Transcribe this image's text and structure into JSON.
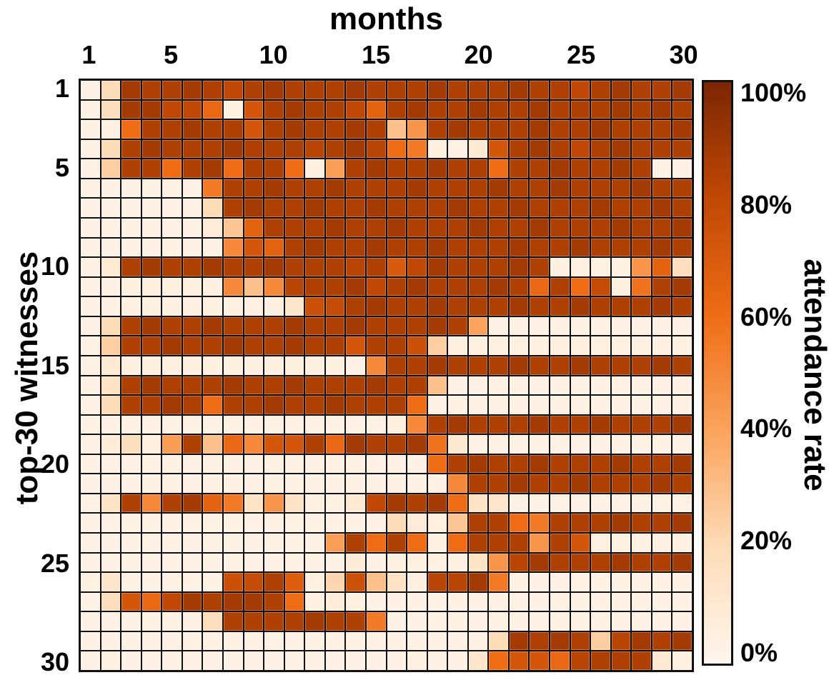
{
  "title": "months",
  "y_axis_title": "top-30 witnesses",
  "x_ticks": [
    {
      "label": "1",
      "col": 1
    },
    {
      "label": "5",
      "col": 5
    },
    {
      "label": "10",
      "col": 10
    },
    {
      "label": "15",
      "col": 15
    },
    {
      "label": "20",
      "col": 20
    },
    {
      "label": "25",
      "col": 25
    },
    {
      "label": "30",
      "col": 30
    }
  ],
  "y_ticks": [
    {
      "label": "1",
      "row": 1
    },
    {
      "label": "5",
      "row": 5
    },
    {
      "label": "10",
      "row": 10
    },
    {
      "label": "15",
      "row": 15
    },
    {
      "label": "20",
      "row": 20
    },
    {
      "label": "25",
      "row": 25
    },
    {
      "label": "30",
      "row": 30
    }
  ],
  "colorbar": {
    "title": "attendance rate",
    "tick_labels": [
      "100%",
      "80%",
      "60%",
      "40%",
      "20%",
      "0%"
    ],
    "tick_values": [
      1.0,
      0.8,
      0.6,
      0.4,
      0.2,
      0.0
    ]
  },
  "chart_data": {
    "type": "heatmap",
    "xlabel": "months",
    "ylabel": "top-30 witnesses",
    "x_range": [
      1,
      30
    ],
    "y_range": [
      1,
      30
    ],
    "value_label": "attendance rate",
    "value_range": [
      0,
      1
    ],
    "grid": "black cell borders",
    "legend_position": "right colorbar",
    "colormap_stops": [
      {
        "t": 0.0,
        "color": "#fff6ed"
      },
      {
        "t": 0.2,
        "color": "#fddcb8"
      },
      {
        "t": 0.4,
        "color": "#fba35c"
      },
      {
        "t": 0.6,
        "color": "#ef6c15"
      },
      {
        "t": 0.8,
        "color": "#c04804"
      },
      {
        "t": 1.0,
        "color": "#7a2603"
      }
    ],
    "matrix": [
      [
        0.03,
        0.2,
        0.88,
        0.85,
        0.85,
        0.88,
        0.85,
        0.8,
        0.85,
        0.88,
        0.85,
        0.85,
        0.85,
        0.88,
        0.85,
        0.85,
        0.85,
        0.88,
        0.85,
        0.85,
        0.85,
        0.88,
        0.85,
        0.85,
        0.8,
        0.85,
        0.88,
        0.85,
        0.85,
        0.88
      ],
      [
        0.03,
        0.18,
        0.88,
        0.88,
        0.8,
        0.8,
        0.62,
        0.04,
        0.72,
        0.85,
        0.88,
        0.85,
        0.85,
        0.8,
        0.65,
        0.85,
        0.88,
        0.85,
        0.85,
        0.88,
        0.85,
        0.85,
        0.88,
        0.85,
        0.85,
        0.85,
        0.88,
        0.85,
        0.88,
        0.85
      ],
      [
        0.03,
        0.04,
        0.6,
        0.85,
        0.85,
        0.88,
        0.85,
        0.85,
        0.72,
        0.85,
        0.88,
        0.85,
        0.85,
        0.88,
        0.85,
        0.3,
        0.45,
        0.85,
        0.88,
        0.85,
        0.85,
        0.85,
        0.88,
        0.85,
        0.85,
        0.88,
        0.85,
        0.85,
        0.85,
        0.88
      ],
      [
        0.03,
        0.2,
        0.85,
        0.88,
        0.85,
        0.85,
        0.85,
        0.88,
        0.85,
        0.85,
        0.85,
        0.82,
        0.85,
        0.88,
        0.82,
        0.6,
        0.55,
        0.05,
        0.03,
        0.1,
        0.72,
        0.85,
        0.88,
        0.85,
        0.8,
        0.85,
        0.88,
        0.85,
        0.85,
        0.85
      ],
      [
        0.03,
        0.25,
        0.85,
        0.85,
        0.6,
        0.85,
        0.88,
        0.6,
        0.85,
        0.85,
        0.6,
        0.04,
        0.42,
        0.85,
        0.88,
        0.85,
        0.85,
        0.88,
        0.85,
        0.85,
        0.6,
        0.85,
        0.85,
        0.88,
        0.85,
        0.85,
        0.88,
        0.85,
        0.03,
        0.03
      ],
      [
        0.03,
        0.03,
        0.03,
        0.03,
        0.03,
        0.03,
        0.55,
        0.85,
        0.85,
        0.88,
        0.85,
        0.85,
        0.88,
        0.85,
        0.85,
        0.85,
        0.88,
        0.85,
        0.85,
        0.85,
        0.88,
        0.85,
        0.85,
        0.88,
        0.85,
        0.85,
        0.85,
        0.88,
        0.85,
        0.85
      ],
      [
        0.03,
        0.03,
        0.03,
        0.03,
        0.03,
        0.03,
        0.2,
        0.85,
        0.88,
        0.85,
        0.85,
        0.88,
        0.85,
        0.85,
        0.88,
        0.85,
        0.85,
        0.85,
        0.88,
        0.85,
        0.85,
        0.88,
        0.85,
        0.85,
        0.85,
        0.88,
        0.85,
        0.85,
        0.88,
        0.85
      ],
      [
        0.03,
        0.03,
        0.03,
        0.03,
        0.03,
        0.03,
        0.08,
        0.28,
        0.65,
        0.85,
        0.85,
        0.85,
        0.88,
        0.85,
        0.85,
        0.88,
        0.85,
        0.85,
        0.85,
        0.88,
        0.85,
        0.85,
        0.88,
        0.85,
        0.85,
        0.85,
        0.88,
        0.85,
        0.85,
        0.88
      ],
      [
        0.03,
        0.03,
        0.03,
        0.03,
        0.03,
        0.03,
        0.03,
        0.5,
        0.72,
        0.65,
        0.85,
        0.88,
        0.85,
        0.85,
        0.88,
        0.85,
        0.85,
        0.88,
        0.85,
        0.85,
        0.85,
        0.88,
        0.85,
        0.85,
        0.88,
        0.85,
        0.85,
        0.85,
        0.88,
        0.85
      ],
      [
        0.03,
        0.1,
        0.85,
        0.88,
        0.85,
        0.85,
        0.88,
        0.85,
        0.85,
        0.88,
        0.85,
        0.85,
        0.85,
        0.82,
        0.85,
        0.7,
        0.8,
        0.88,
        0.85,
        0.85,
        0.85,
        0.88,
        0.85,
        0.04,
        0.04,
        0.04,
        0.04,
        0.45,
        0.65,
        0.18
      ],
      [
        0.03,
        0.03,
        0.05,
        0.05,
        0.05,
        0.05,
        0.04,
        0.5,
        0.3,
        0.5,
        0.82,
        0.85,
        0.85,
        0.88,
        0.8,
        0.85,
        0.88,
        0.85,
        0.85,
        0.85,
        0.88,
        0.85,
        0.62,
        0.85,
        0.6,
        0.78,
        0.05,
        0.58,
        0.85,
        0.88
      ],
      [
        0.03,
        0.03,
        0.04,
        0.04,
        0.04,
        0.04,
        0.04,
        0.04,
        0.04,
        0.04,
        0.12,
        0.75,
        0.78,
        0.85,
        0.88,
        0.85,
        0.85,
        0.88,
        0.85,
        0.85,
        0.85,
        0.88,
        0.85,
        0.85,
        0.88,
        0.85,
        0.85,
        0.85,
        0.88,
        0.85
      ],
      [
        0.03,
        0.2,
        0.85,
        0.88,
        0.85,
        0.85,
        0.88,
        0.85,
        0.85,
        0.85,
        0.88,
        0.85,
        0.85,
        0.88,
        0.85,
        0.85,
        0.85,
        0.88,
        0.85,
        0.4,
        0.03,
        0.03,
        0.03,
        0.03,
        0.03,
        0.03,
        0.03,
        0.03,
        0.03,
        0.03
      ],
      [
        0.03,
        0.25,
        0.85,
        0.85,
        0.88,
        0.85,
        0.85,
        0.88,
        0.85,
        0.85,
        0.88,
        0.85,
        0.85,
        0.72,
        0.85,
        0.85,
        0.75,
        0.25,
        0.04,
        0.04,
        0.04,
        0.04,
        0.04,
        0.04,
        0.04,
        0.04,
        0.04,
        0.04,
        0.04,
        0.04
      ],
      [
        0.03,
        0.1,
        0.04,
        0.04,
        0.04,
        0.04,
        0.04,
        0.04,
        0.04,
        0.04,
        0.04,
        0.04,
        0.04,
        0.03,
        0.5,
        0.85,
        0.85,
        0.88,
        0.85,
        0.85,
        0.85,
        0.88,
        0.85,
        0.85,
        0.88,
        0.85,
        0.85,
        0.85,
        0.88,
        0.85
      ],
      [
        0.03,
        0.15,
        0.85,
        0.88,
        0.85,
        0.85,
        0.85,
        0.88,
        0.85,
        0.85,
        0.88,
        0.85,
        0.85,
        0.85,
        0.88,
        0.85,
        0.85,
        0.3,
        0.03,
        0.03,
        0.03,
        0.03,
        0.03,
        0.03,
        0.03,
        0.03,
        0.03,
        0.03,
        0.03,
        0.03
      ],
      [
        0.03,
        0.2,
        0.85,
        0.85,
        0.88,
        0.85,
        0.6,
        0.85,
        0.85,
        0.88,
        0.85,
        0.85,
        0.88,
        0.85,
        0.85,
        0.85,
        0.6,
        0.03,
        0.03,
        0.03,
        0.03,
        0.03,
        0.03,
        0.03,
        0.03,
        0.03,
        0.03,
        0.03,
        0.03,
        0.03
      ],
      [
        0.03,
        0.03,
        0.03,
        0.03,
        0.03,
        0.03,
        0.03,
        0.03,
        0.03,
        0.03,
        0.03,
        0.03,
        0.03,
        0.03,
        0.03,
        0.05,
        0.5,
        0.85,
        0.88,
        0.85,
        0.85,
        0.85,
        0.88,
        0.85,
        0.85,
        0.88,
        0.85,
        0.85,
        0.85,
        0.88
      ],
      [
        0.03,
        0.08,
        0.18,
        0.05,
        0.42,
        0.85,
        0.3,
        0.62,
        0.5,
        0.72,
        0.72,
        0.85,
        0.62,
        0.88,
        0.85,
        0.85,
        0.88,
        0.58,
        0.1,
        0.03,
        0.03,
        0.03,
        0.03,
        0.03,
        0.03,
        0.03,
        0.03,
        0.03,
        0.03,
        0.03
      ],
      [
        0.03,
        0.03,
        0.03,
        0.03,
        0.03,
        0.03,
        0.03,
        0.03,
        0.03,
        0.03,
        0.03,
        0.03,
        0.03,
        0.03,
        0.03,
        0.03,
        0.03,
        0.6,
        0.85,
        0.88,
        0.85,
        0.85,
        0.88,
        0.85,
        0.85,
        0.85,
        0.88,
        0.85,
        0.85,
        0.88
      ],
      [
        0.03,
        0.03,
        0.03,
        0.03,
        0.03,
        0.03,
        0.03,
        0.03,
        0.03,
        0.03,
        0.03,
        0.03,
        0.03,
        0.03,
        0.03,
        0.03,
        0.03,
        0.03,
        0.5,
        0.85,
        0.85,
        0.88,
        0.85,
        0.85,
        0.88,
        0.85,
        0.85,
        0.85,
        0.88,
        0.85
      ],
      [
        0.03,
        0.15,
        0.85,
        0.5,
        0.85,
        0.88,
        0.65,
        0.55,
        0.15,
        0.45,
        0.15,
        0.04,
        0.04,
        0.1,
        0.8,
        0.88,
        0.85,
        0.88,
        0.6,
        0.15,
        0.12,
        0.03,
        0.03,
        0.03,
        0.03,
        0.03,
        0.03,
        0.03,
        0.03,
        0.03
      ],
      [
        0.03,
        0.03,
        0.03,
        0.03,
        0.03,
        0.03,
        0.03,
        0.03,
        0.03,
        0.03,
        0.03,
        0.03,
        0.03,
        0.03,
        0.03,
        0.2,
        0.08,
        0.05,
        0.28,
        0.85,
        0.85,
        0.6,
        0.55,
        0.85,
        0.85,
        0.85,
        0.88,
        0.85,
        0.85,
        0.88
      ],
      [
        0.03,
        0.03,
        0.03,
        0.03,
        0.03,
        0.03,
        0.03,
        0.03,
        0.03,
        0.03,
        0.03,
        0.03,
        0.42,
        0.85,
        0.6,
        0.85,
        0.6,
        0.04,
        0.6,
        0.85,
        0.85,
        0.85,
        0.45,
        0.85,
        0.72,
        0.05,
        0.04,
        0.04,
        0.04,
        0.04
      ],
      [
        0.03,
        0.03,
        0.03,
        0.03,
        0.03,
        0.03,
        0.03,
        0.03,
        0.03,
        0.03,
        0.03,
        0.03,
        0.03,
        0.08,
        0.03,
        0.04,
        0.04,
        0.04,
        0.04,
        0.15,
        0.45,
        0.82,
        0.88,
        0.85,
        0.85,
        0.85,
        0.88,
        0.85,
        0.85,
        0.88
      ],
      [
        0.04,
        0.12,
        0.03,
        0.03,
        0.03,
        0.03,
        0.03,
        0.75,
        0.78,
        0.85,
        0.68,
        0.04,
        0.22,
        0.75,
        0.3,
        0.15,
        0.04,
        0.82,
        0.82,
        0.88,
        0.55,
        0.03,
        0.03,
        0.03,
        0.03,
        0.03,
        0.03,
        0.03,
        0.03,
        0.03
      ],
      [
        0.03,
        0.18,
        0.72,
        0.62,
        0.8,
        0.88,
        0.85,
        0.88,
        0.88,
        0.85,
        0.6,
        0.04,
        0.08,
        0.04,
        0.03,
        0.03,
        0.03,
        0.03,
        0.03,
        0.03,
        0.03,
        0.03,
        0.03,
        0.03,
        0.03,
        0.03,
        0.03,
        0.03,
        0.03,
        0.03
      ],
      [
        0.03,
        0.03,
        0.03,
        0.03,
        0.03,
        0.03,
        0.18,
        0.85,
        0.85,
        0.85,
        0.85,
        0.88,
        0.85,
        0.85,
        0.55,
        0.03,
        0.03,
        0.03,
        0.03,
        0.03,
        0.03,
        0.03,
        0.03,
        0.03,
        0.03,
        0.03,
        0.03,
        0.03,
        0.03,
        0.03
      ],
      [
        0.03,
        0.03,
        0.03,
        0.03,
        0.03,
        0.03,
        0.03,
        0.03,
        0.03,
        0.03,
        0.03,
        0.03,
        0.03,
        0.03,
        0.03,
        0.03,
        0.03,
        0.03,
        0.03,
        0.03,
        0.2,
        0.88,
        0.85,
        0.88,
        0.85,
        0.25,
        0.82,
        0.88,
        0.85,
        0.88
      ],
      [
        0.03,
        0.05,
        0.03,
        0.03,
        0.03,
        0.03,
        0.03,
        0.03,
        0.03,
        0.03,
        0.03,
        0.03,
        0.03,
        0.03,
        0.03,
        0.03,
        0.05,
        0.03,
        0.03,
        0.12,
        0.6,
        0.72,
        0.72,
        0.62,
        0.82,
        0.85,
        0.85,
        0.85,
        0.1,
        0.05
      ]
    ]
  }
}
